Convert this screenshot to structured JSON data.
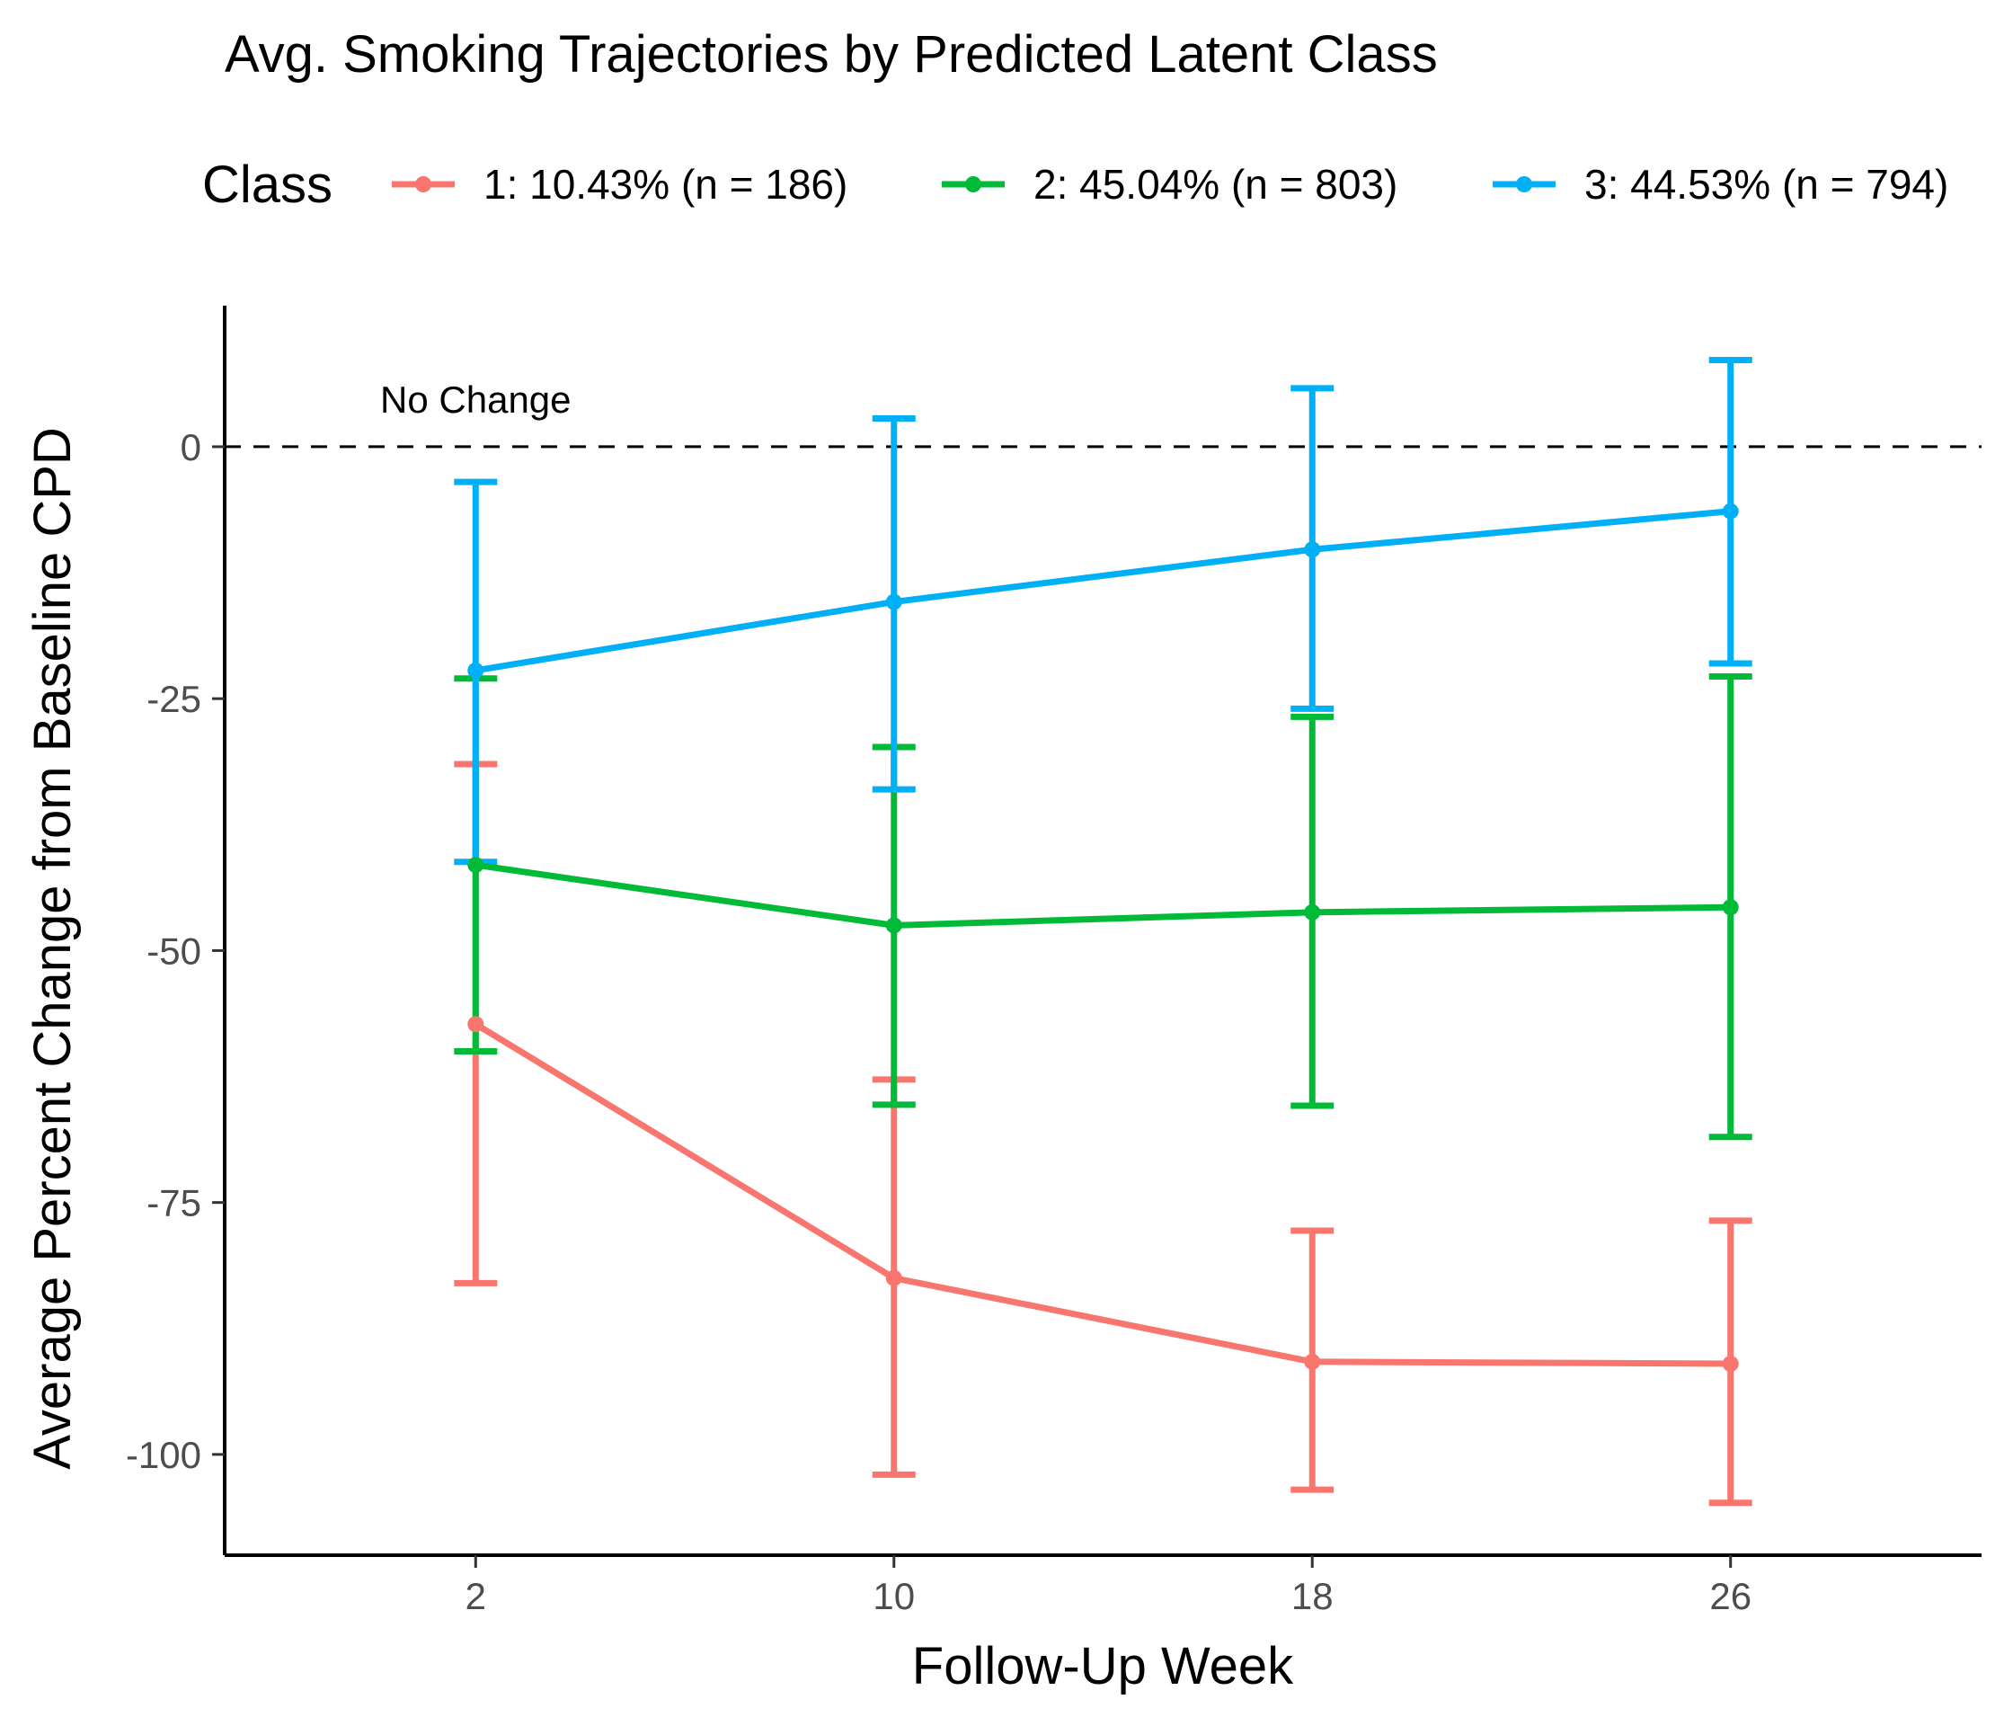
{
  "chart_data": {
    "type": "line",
    "title": "Avg. Smoking Trajectories by Predicted Latent Class",
    "xlabel": "Follow-Up Week",
    "ylabel": "Average Percent Change from Baseline CPD",
    "x": [
      2,
      10,
      18,
      26
    ],
    "x_ticks": [
      "2",
      "10",
      "18",
      "26"
    ],
    "y_ticks": [
      "0",
      "-25",
      "-50",
      "-75",
      "-100"
    ],
    "ylim": [
      -110,
      14
    ],
    "xlim": [
      -2.8,
      30.8
    ],
    "grid": false,
    "legend": {
      "title": "Class",
      "placement": "top"
    },
    "reference_line": {
      "y": 0,
      "style": "dashed",
      "label": "No Change",
      "label_x": 2
    },
    "series": [
      {
        "name": "1: 10.43% (n = 186)",
        "color": "#F8766D",
        "values": [
          -57.3,
          -82.5,
          -90.8,
          -91.0
        ],
        "lower": [
          -83.0,
          -102.0,
          -103.5,
          -104.8
        ],
        "upper": [
          -31.5,
          -62.8,
          -77.8,
          -76.8
        ]
      },
      {
        "name": "2: 45.04% (n = 803)",
        "color": "#00BA38",
        "values": [
          -41.5,
          -47.5,
          -46.2,
          -45.7
        ],
        "lower": [
          -60.0,
          -65.3,
          -65.4,
          -68.5
        ],
        "upper": [
          -23.0,
          -29.8,
          -26.8,
          -22.8
        ]
      },
      {
        "name": "3: 44.53% (n = 794)",
        "color": "#00B0F6",
        "values": [
          -22.2,
          -15.4,
          -10.2,
          -6.4
        ],
        "lower": [
          -41.2,
          -34.0,
          -26.0,
          -21.5
        ],
        "upper": [
          -3.5,
          2.8,
          5.8,
          8.6
        ]
      }
    ]
  }
}
